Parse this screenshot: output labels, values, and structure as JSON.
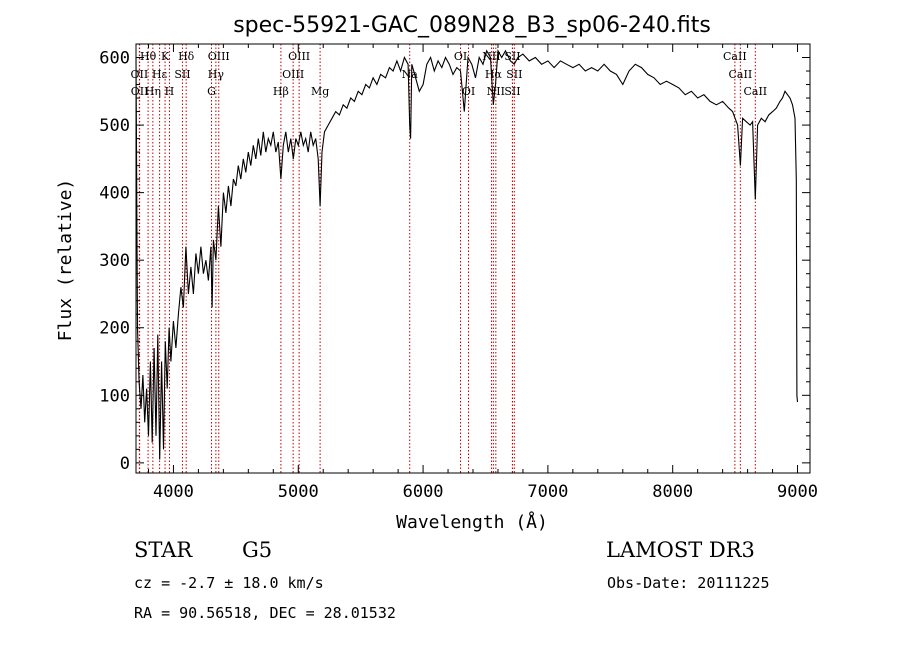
{
  "chart_data": {
    "type": "line",
    "title": "spec-55921-GAC_089N28_B3_sp06-240.fits",
    "xlabel": "Wavelength (Å)",
    "ylabel": "Flux (relative)",
    "xlim": [
      3700,
      9100
    ],
    "ylim": [
      -15,
      620
    ],
    "xticks": [
      4000,
      5000,
      6000,
      7000,
      8000,
      9000
    ],
    "yticks": [
      0,
      100,
      200,
      300,
      400,
      500,
      600
    ],
    "grid": false,
    "series": [
      {
        "name": "Flux",
        "points": [
          [
            3700,
            600
          ],
          [
            3712,
            200
          ],
          [
            3725,
            120
          ],
          [
            3740,
            80
          ],
          [
            3755,
            130
          ],
          [
            3770,
            60
          ],
          [
            3785,
            110
          ],
          [
            3800,
            40
          ],
          [
            3815,
            150
          ],
          [
            3830,
            30
          ],
          [
            3845,
            170
          ],
          [
            3860,
            40
          ],
          [
            3875,
            190
          ],
          [
            3890,
            5
          ],
          [
            3905,
            150
          ],
          [
            3920,
            20
          ],
          [
            3935,
            180
          ],
          [
            3950,
            110
          ],
          [
            3965,
            200
          ],
          [
            3980,
            150
          ],
          [
            4000,
            210
          ],
          [
            4020,
            170
          ],
          [
            4040,
            220
          ],
          [
            4060,
            260
          ],
          [
            4080,
            230
          ],
          [
            4100,
            320
          ],
          [
            4120,
            250
          ],
          [
            4140,
            290
          ],
          [
            4160,
            250
          ],
          [
            4180,
            310
          ],
          [
            4200,
            280
          ],
          [
            4220,
            320
          ],
          [
            4240,
            280
          ],
          [
            4260,
            300
          ],
          [
            4280,
            270
          ],
          [
            4300,
            320
          ],
          [
            4310,
            230
          ],
          [
            4320,
            330
          ],
          [
            4340,
            300
          ],
          [
            4360,
            380
          ],
          [
            4380,
            320
          ],
          [
            4400,
            400
          ],
          [
            4420,
            370
          ],
          [
            4440,
            410
          ],
          [
            4460,
            380
          ],
          [
            4480,
            420
          ],
          [
            4500,
            410
          ],
          [
            4520,
            440
          ],
          [
            4540,
            420
          ],
          [
            4560,
            450
          ],
          [
            4580,
            430
          ],
          [
            4600,
            460
          ],
          [
            4620,
            440
          ],
          [
            4640,
            470
          ],
          [
            4660,
            450
          ],
          [
            4680,
            480
          ],
          [
            4700,
            455
          ],
          [
            4720,
            490
          ],
          [
            4740,
            460
          ],
          [
            4760,
            480
          ],
          [
            4780,
            470
          ],
          [
            4800,
            490
          ],
          [
            4820,
            460
          ],
          [
            4840,
            475
          ],
          [
            4861,
            420
          ],
          [
            4880,
            470
          ],
          [
            4900,
            490
          ],
          [
            4920,
            460
          ],
          [
            4940,
            480
          ],
          [
            4960,
            450
          ],
          [
            4980,
            480
          ],
          [
            5000,
            470
          ],
          [
            5020,
            490
          ],
          [
            5040,
            470
          ],
          [
            5060,
            480
          ],
          [
            5080,
            460
          ],
          [
            5100,
            490
          ],
          [
            5120,
            470
          ],
          [
            5140,
            480
          ],
          [
            5160,
            450
          ],
          [
            5175,
            380
          ],
          [
            5190,
            460
          ],
          [
            5210,
            490
          ],
          [
            5240,
            500
          ],
          [
            5270,
            510
          ],
          [
            5300,
            520
          ],
          [
            5330,
            515
          ],
          [
            5360,
            530
          ],
          [
            5390,
            525
          ],
          [
            5420,
            540
          ],
          [
            5450,
            535
          ],
          [
            5480,
            550
          ],
          [
            5510,
            545
          ],
          [
            5540,
            560
          ],
          [
            5570,
            555
          ],
          [
            5600,
            570
          ],
          [
            5630,
            560
          ],
          [
            5660,
            575
          ],
          [
            5700,
            570
          ],
          [
            5730,
            585
          ],
          [
            5760,
            580
          ],
          [
            5790,
            595
          ],
          [
            5820,
            580
          ],
          [
            5850,
            600
          ],
          [
            5880,
            590
          ],
          [
            5893,
            500
          ],
          [
            5900,
            480
          ],
          [
            5910,
            590
          ],
          [
            5940,
            570
          ],
          [
            5970,
            550
          ],
          [
            6000,
            560
          ],
          [
            6030,
            590
          ],
          [
            6060,
            600
          ],
          [
            6090,
            580
          ],
          [
            6120,
            595
          ],
          [
            6150,
            585
          ],
          [
            6180,
            600
          ],
          [
            6210,
            590
          ],
          [
            6240,
            575
          ],
          [
            6270,
            585
          ],
          [
            6300,
            580
          ],
          [
            6330,
            520
          ],
          [
            6360,
            600
          ],
          [
            6390,
            590
          ],
          [
            6420,
            570
          ],
          [
            6450,
            600
          ],
          [
            6480,
            590
          ],
          [
            6510,
            610
          ],
          [
            6540,
            600
          ],
          [
            6563,
            530
          ],
          [
            6580,
            560
          ],
          [
            6600,
            610
          ],
          [
            6630,
            600
          ],
          [
            6660,
            610
          ],
          [
            6700,
            595
          ],
          [
            6730,
            590
          ],
          [
            6760,
            600
          ],
          [
            6800,
            605
          ],
          [
            6850,
            595
          ],
          [
            6900,
            600
          ],
          [
            6950,
            590
          ],
          [
            7000,
            595
          ],
          [
            7050,
            585
          ],
          [
            7100,
            595
          ],
          [
            7150,
            590
          ],
          [
            7200,
            585
          ],
          [
            7250,
            590
          ],
          [
            7300,
            580
          ],
          [
            7350,
            585
          ],
          [
            7400,
            580
          ],
          [
            7450,
            590
          ],
          [
            7500,
            580
          ],
          [
            7550,
            575
          ],
          [
            7600,
            560
          ],
          [
            7650,
            580
          ],
          [
            7700,
            590
          ],
          [
            7750,
            585
          ],
          [
            7800,
            575
          ],
          [
            7850,
            570
          ],
          [
            7900,
            560
          ],
          [
            7950,
            565
          ],
          [
            8000,
            560
          ],
          [
            8050,
            555
          ],
          [
            8100,
            545
          ],
          [
            8150,
            550
          ],
          [
            8200,
            540
          ],
          [
            8250,
            545
          ],
          [
            8300,
            535
          ],
          [
            8350,
            530
          ],
          [
            8400,
            535
          ],
          [
            8450,
            525
          ],
          [
            8480,
            520
          ],
          [
            8500,
            510
          ],
          [
            8520,
            500
          ],
          [
            8542,
            440
          ],
          [
            8560,
            510
          ],
          [
            8590,
            505
          ],
          [
            8620,
            500
          ],
          [
            8640,
            505
          ],
          [
            8662,
            390
          ],
          [
            8680,
            500
          ],
          [
            8710,
            510
          ],
          [
            8740,
            505
          ],
          [
            8770,
            515
          ],
          [
            8800,
            520
          ],
          [
            8830,
            525
          ],
          [
            8860,
            535
          ],
          [
            8880,
            540
          ],
          [
            8900,
            550
          ],
          [
            8920,
            545
          ],
          [
            8940,
            540
          ],
          [
            8960,
            530
          ],
          [
            8980,
            510
          ],
          [
            8990,
            420
          ],
          [
            8995,
            100
          ],
          [
            9000,
            90
          ]
        ]
      }
    ],
    "lines": [
      {
        "label": "Hθ",
        "wl": 3797,
        "row": 0
      },
      {
        "label": "OII",
        "wl": 3727,
        "row": 1
      },
      {
        "label": "OII",
        "wl": 3729,
        "row": 2
      },
      {
        "label": "Hη",
        "wl": 3835,
        "row": 2
      },
      {
        "label": "K",
        "wl": 3933,
        "row": 0
      },
      {
        "label": "Hε",
        "wl": 3889,
        "row": 1
      },
      {
        "label": "H",
        "wl": 3968,
        "row": 2
      },
      {
        "label": "SII",
        "wl": 4072,
        "row": 1
      },
      {
        "label": "Hδ",
        "wl": 4102,
        "row": 0
      },
      {
        "label": "OIII",
        "wl": 4363,
        "row": 0
      },
      {
        "label": "Hγ",
        "wl": 4340,
        "row": 1
      },
      {
        "label": "G",
        "wl": 4305,
        "row": 2
      },
      {
        "label": "Hβ",
        "wl": 4861,
        "row": 2
      },
      {
        "label": "OIII",
        "wl": 4959,
        "row": 1
      },
      {
        "label": "OIII",
        "wl": 5007,
        "row": 0
      },
      {
        "label": "Mg",
        "wl": 5175,
        "row": 2
      },
      {
        "label": "Na",
        "wl": 5893,
        "row": 1
      },
      {
        "label": "OI",
        "wl": 6300,
        "row": 0
      },
      {
        "label": "OI",
        "wl": 6364,
        "row": 2
      },
      {
        "label": "NII",
        "wl": 6548,
        "row": 0
      },
      {
        "label": "Hα",
        "wl": 6563,
        "row": 1
      },
      {
        "label": "NII",
        "wl": 6583,
        "row": 2
      },
      {
        "label": "SII",
        "wl": 6716,
        "row": 0
      },
      {
        "label": "SII",
        "wl": 6731,
        "row": 1
      },
      {
        "label": "SII",
        "wl": 6716,
        "row": 2
      },
      {
        "label": "CaII",
        "wl": 8498,
        "row": 0
      },
      {
        "label": "CaII",
        "wl": 8542,
        "row": 1
      },
      {
        "label": "CaII",
        "wl": 8662,
        "row": 2
      }
    ]
  },
  "footer": {
    "class": "STAR",
    "subclass": "G5",
    "survey": "LAMOST DR3",
    "cz": "cz = -2.7 ± 18.0 km/s",
    "obs_date": "Obs-Date: 20111225",
    "coords": "RA =  90.56518, DEC =  28.01532"
  },
  "colors": {
    "axis": "#000000",
    "spectrum": "#000000",
    "line_marker": "#c00000",
    "background": "#ffffff"
  }
}
